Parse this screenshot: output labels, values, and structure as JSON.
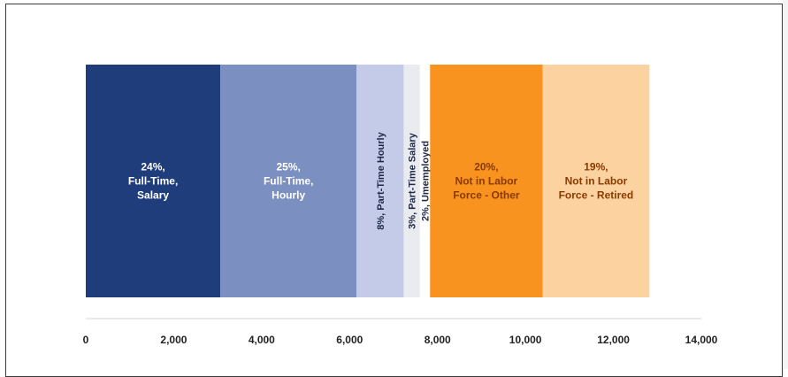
{
  "chart_data": {
    "type": "bar",
    "orientation": "horizontal-stacked",
    "xlim": [
      0,
      14000
    ],
    "x_ticks": [
      "0",
      "2,000",
      "4,000",
      "6,000",
      "8,000",
      "10,000",
      "12,000",
      "14,000"
    ],
    "grid": false,
    "segments": [
      {
        "value": 3060,
        "label_lines": [
          "24%,",
          "Full-Time,",
          "Salary"
        ],
        "color": "#1f3d7a",
        "text_color": "#ffffff",
        "vertical": false
      },
      {
        "value": 3100,
        "label_lines": [
          "25%,",
          "Full-Time,",
          "Hourly"
        ],
        "color": "#7b8fc0",
        "text_color": "#ffffff",
        "vertical": false
      },
      {
        "value": 1070,
        "label_lines": [
          "8%, Part-Time Hourly"
        ],
        "color": "#c3cbe8",
        "text_color": "#1f2a4a",
        "vertical": true
      },
      {
        "value": 370,
        "label_lines": [
          "3%, Part-Time Salary"
        ],
        "color": "#e9ebef",
        "text_color": "#1f2a4a",
        "vertical": true
      },
      {
        "value": 230,
        "label_lines": [
          "2%, Umemployed"
        ],
        "color": "#ffffff",
        "text_color": "#1f2a4a",
        "vertical": true
      },
      {
        "value": 2560,
        "label_lines": [
          "20%,",
          "Not in Labor",
          "Force - Other"
        ],
        "color": "#f7931e",
        "text_color": "#8a3a00",
        "vertical": false
      },
      {
        "value": 2430,
        "label_lines": [
          "19%,",
          "Not in Labor",
          "Force - Retired"
        ],
        "color": "#fcd3a0",
        "text_color": "#8a3a00",
        "vertical": false
      }
    ]
  }
}
